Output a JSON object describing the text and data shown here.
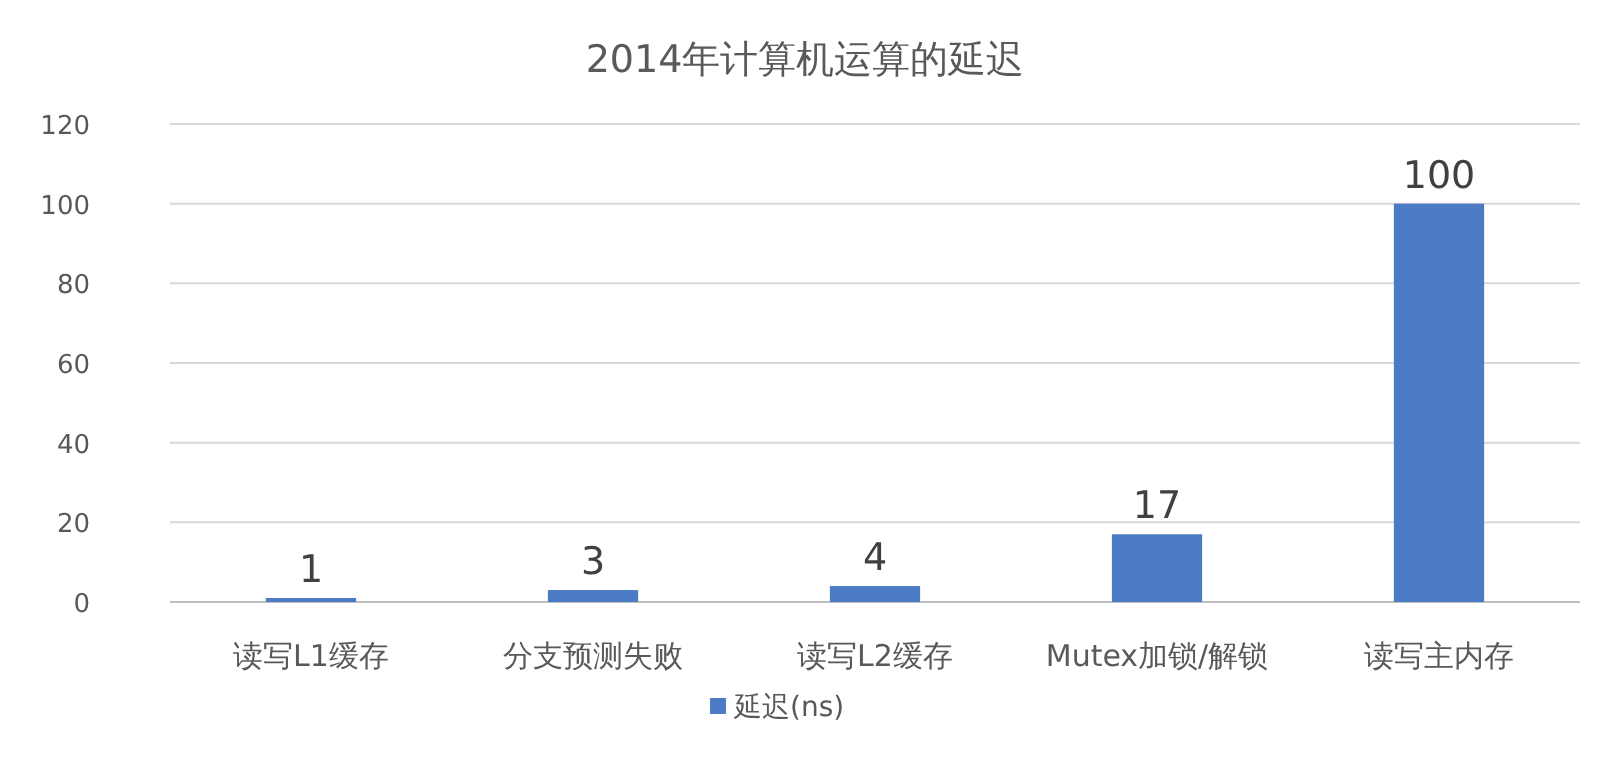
{
  "chart_data": {
    "type": "bar",
    "title": "2014年计算机运算的延迟",
    "categories": [
      "读写L1缓存",
      "分支预测失败",
      "读写L2缓存",
      "Mutex加锁/解锁",
      "读写主内存"
    ],
    "series": [
      {
        "name": "延迟(ns)",
        "color": "#4a7bc4",
        "values": [
          1,
          3,
          4,
          17,
          100
        ]
      }
    ],
    "ylim": [
      0,
      120
    ],
    "yticks": [
      0,
      20,
      40,
      60,
      80,
      100,
      120
    ],
    "grid": "y",
    "legend": "bottom",
    "data_labels": true
  }
}
